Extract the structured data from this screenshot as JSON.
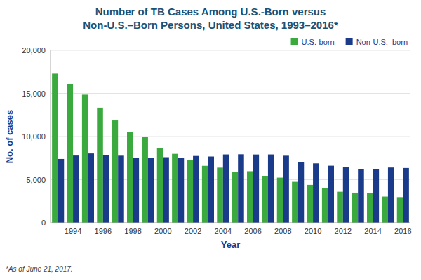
{
  "chart_data": {
    "type": "bar",
    "title": "Number of TB Cases Among U.S.-Born versus\nNon-U.S.–Born Persons, United States, 1993–2016*",
    "xlabel": "Year",
    "ylabel": "No. of cases",
    "annotations": [
      "*As of June 21, 2017."
    ],
    "categories": [
      null,
      "1994",
      null,
      "1996",
      null,
      "1998",
      null,
      "2000",
      null,
      "2002",
      null,
      "2004",
      null,
      "2006",
      null,
      "2008",
      null,
      "2010",
      null,
      "2012",
      null,
      "2014",
      null,
      "2016"
    ],
    "series": [
      {
        "name": "U.S.-born",
        "color": "#3aaa3e",
        "values": [
          17284,
          16098,
          14843,
          13342,
          11867,
          10535,
          9933,
          8688,
          7994,
          7269,
          6604,
          6394,
          5881,
          5980,
          5401,
          5239,
          4748,
          4399,
          3986,
          3606,
          3500,
          3497,
          3045,
          2901
        ]
      },
      {
        "name": "Non-U.S.–born",
        "color": "#1a3a8a",
        "values": [
          7402,
          7796,
          8038,
          7838,
          7780,
          7534,
          7520,
          7601,
          7498,
          7748,
          7682,
          7922,
          7941,
          7915,
          7922,
          7776,
          6999,
          6887,
          6617,
          6421,
          6222,
          6235,
          6406,
          6351
        ]
      }
    ],
    "ylim": [
      0,
      20000
    ],
    "yticks": [
      0,
      {
        "value": 5000,
        "label": "5,000"
      },
      {
        "value": 10000,
        "label": "10,000"
      },
      {
        "value": 15000,
        "label": "15,000"
      },
      {
        "value": 20000,
        "label": "20,000"
      }
    ],
    "grid": true,
    "legend": "upper right"
  }
}
